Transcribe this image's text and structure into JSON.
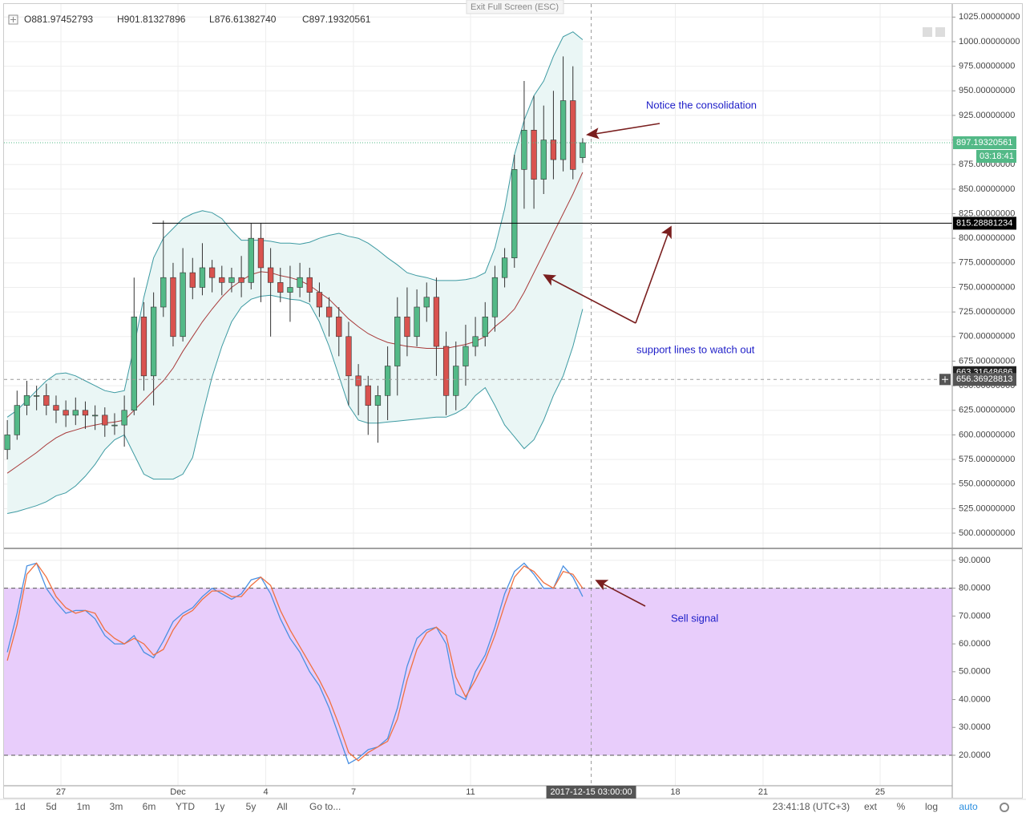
{
  "header": {
    "exit_button": "Exit Full Screen (ESC)",
    "ohlc": [
      {
        "key": "O",
        "value": "881.97452793"
      },
      {
        "key": "H",
        "value": "901.81327896"
      },
      {
        "key": "L",
        "value": "876.61382740"
      },
      {
        "key": "C",
        "value": "897.19320561"
      }
    ]
  },
  "chart_data": [
    {
      "type": "candlestick",
      "open": [
        585,
        600,
        630,
        640,
        640,
        630,
        625,
        620,
        625,
        620,
        620,
        610,
        610,
        625,
        720,
        660,
        730,
        760,
        700,
        765,
        750,
        770,
        760,
        755,
        760,
        755,
        800,
        770,
        755,
        745,
        750,
        760,
        745,
        730,
        720,
        700,
        660,
        650,
        630,
        640,
        670,
        720,
        700,
        730,
        740,
        690,
        640,
        670,
        690,
        700,
        720,
        760,
        780,
        870,
        910,
        860,
        900,
        880,
        940,
        881.97452793
      ],
      "high": [
        615,
        645,
        655,
        650,
        652,
        640,
        635,
        638,
        634,
        630,
        628,
        622,
        640,
        760,
        735,
        745,
        818,
        775,
        790,
        780,
        795,
        778,
        772,
        770,
        782,
        815,
        815,
        790,
        770,
        772,
        775,
        770,
        755,
        740,
        730,
        715,
        672,
        660,
        650,
        690,
        740,
        750,
        748,
        755,
        760,
        705,
        695,
        712,
        720,
        735,
        772,
        790,
        885,
        960,
        945,
        935,
        950,
        985,
        975,
        901.81327896
      ],
      "low": [
        575,
        595,
        620,
        625,
        620,
        612,
        608,
        610,
        606,
        605,
        598,
        600,
        588,
        620,
        645,
        630,
        720,
        690,
        695,
        738,
        742,
        745,
        742,
        745,
        740,
        748,
        735,
        700,
        735,
        715,
        740,
        735,
        720,
        700,
        680,
        630,
        620,
        600,
        592,
        615,
        640,
        680,
        690,
        715,
        660,
        620,
        625,
        650,
        680,
        690,
        705,
        750,
        770,
        830,
        830,
        845,
        860,
        868,
        860,
        876.6138274
      ],
      "close": [
        600,
        630,
        640,
        640,
        630,
        625,
        620,
        625,
        620,
        620,
        610,
        610,
        625,
        720,
        660,
        730,
        760,
        700,
        765,
        750,
        770,
        760,
        755,
        760,
        755,
        800,
        770,
        755,
        745,
        750,
        760,
        745,
        730,
        720,
        700,
        660,
        650,
        630,
        640,
        670,
        720,
        700,
        730,
        740,
        690,
        640,
        670,
        690,
        700,
        720,
        760,
        780,
        870,
        910,
        860,
        900,
        880,
        940,
        870,
        897.19320561
      ],
      "up_color": "#53b987",
      "down_color": "#d9534f",
      "bands": [
        {
          "color": "#3d9aa2",
          "values": [
            618,
            625,
            635,
            645,
            655,
            662,
            663,
            660,
            655,
            650,
            645,
            643,
            645,
            690,
            740,
            780,
            800,
            810,
            820,
            825,
            828,
            826,
            820,
            808,
            798,
            798,
            798,
            797,
            795,
            795,
            794,
            796,
            800,
            803,
            805,
            802,
            800,
            795,
            788,
            780,
            773,
            765,
            762,
            760,
            757,
            757,
            757,
            758,
            760,
            765,
            790,
            830,
            885,
            920,
            945,
            960,
            985,
            1005,
            1010,
            1002
          ]
        },
        {
          "color": "#a83a3a",
          "values": [
            561,
            568,
            575,
            582,
            590,
            597,
            602,
            605,
            608,
            610,
            612,
            613,
            615,
            625,
            635,
            645,
            655,
            668,
            685,
            700,
            715,
            728,
            740,
            750,
            757,
            763,
            766,
            765,
            762,
            760,
            757,
            752,
            745,
            738,
            728,
            718,
            710,
            703,
            698,
            694,
            692,
            690,
            689,
            688,
            688,
            688,
            690,
            692,
            695,
            700,
            710,
            718,
            728,
            745,
            765,
            785,
            805,
            825,
            845,
            867
          ]
        },
        {
          "color": "#3d9aa2",
          "values": [
            520,
            522,
            525,
            528,
            532,
            538,
            541,
            548,
            558,
            570,
            585,
            595,
            600,
            580,
            560,
            555,
            555,
            555,
            560,
            577,
            620,
            659,
            690,
            715,
            730,
            738,
            741,
            742,
            740,
            738,
            737,
            733,
            715,
            690,
            660,
            630,
            615,
            612,
            612,
            613,
            614,
            615,
            616,
            617,
            618,
            618,
            622,
            628,
            640,
            648,
            630,
            610,
            598,
            586,
            595,
            615,
            640,
            660,
            690,
            728
          ]
        }
      ],
      "band_fill": "#eaf6f5",
      "xlim": [
        -0.34,
        96.9
      ],
      "xticks": [
        {
          "value": 5.5,
          "label": "27"
        },
        {
          "value": 17.5,
          "label": "Dec"
        },
        {
          "value": 26.5,
          "label": "4"
        },
        {
          "value": 35.5,
          "label": "7"
        },
        {
          "value": 47.5,
          "label": "11"
        },
        {
          "value": 68.5,
          "label": "18"
        },
        {
          "value": 77.5,
          "label": "21"
        },
        {
          "value": 89.5,
          "label": "25"
        }
      ],
      "ylim": [
        484.5,
        1038.3
      ],
      "yticks": [
        {
          "value": 500,
          "label": "500.00000000"
        },
        {
          "value": 525,
          "label": "525.00000000"
        },
        {
          "value": 550,
          "label": "550.00000000"
        },
        {
          "value": 575,
          "label": "575.00000000"
        },
        {
          "value": 600,
          "label": "600.00000000"
        },
        {
          "value": 625,
          "label": "625.00000000"
        },
        {
          "value": 650,
          "label": "650.00000000"
        },
        {
          "value": 675,
          "label": "675.00000000"
        },
        {
          "value": 700,
          "label": "700.00000000"
        },
        {
          "value": 725,
          "label": "725.00000000"
        },
        {
          "value": 750,
          "label": "750.00000000"
        },
        {
          "value": 775,
          "label": "775.00000000"
        },
        {
          "value": 800,
          "label": "800.00000000"
        },
        {
          "value": 825,
          "label": "825.00000000"
        },
        {
          "value": 850,
          "label": "850.00000000"
        },
        {
          "value": 875,
          "label": "875.00000000"
        },
        {
          "value": 900,
          "label": "900.00000000"
        },
        {
          "value": 925,
          "label": "925.00000000"
        },
        {
          "value": 950,
          "label": "950.00000000"
        },
        {
          "value": 975,
          "label": "975.00000000"
        },
        {
          "value": 1000,
          "label": "1000.00000000"
        },
        {
          "value": 1025,
          "label": "1025.00000000"
        }
      ],
      "grid": true,
      "levels": [
        {
          "value": 815.28881234,
          "color": "#000000"
        }
      ],
      "last_price": 897.19320561,
      "countdown": "03:18:41",
      "hidden_label": 663.31648686,
      "crosshair": {
        "x": 59.875,
        "x_label": "2017-12-15 03:00:00",
        "y": 656.36928813
      },
      "annotations": [
        "Notice the consolidation",
        "support lines to watch out"
      ]
    },
    {
      "type": "line",
      "series": [
        {
          "color": "#4a90e2",
          "values": [
            57,
            71,
            88,
            89,
            80,
            75,
            71,
            72,
            72,
            69,
            63,
            60,
            60,
            63,
            57,
            55,
            61,
            68,
            71,
            73,
            77,
            80,
            78,
            76,
            78,
            83,
            84,
            78,
            69,
            62,
            57,
            50,
            45,
            37,
            27,
            17,
            19,
            22,
            23,
            26,
            37,
            52,
            62,
            65,
            66,
            60,
            42,
            40,
            50,
            56,
            66,
            78,
            86,
            89,
            85,
            80,
            80,
            88,
            84,
            77
          ]
        },
        {
          "color": "#f07040",
          "values": [
            54,
            67,
            85,
            89,
            84,
            77,
            73,
            71,
            72,
            71,
            65,
            62,
            60,
            62,
            60,
            56,
            58,
            65,
            70,
            72,
            76,
            79,
            79,
            77,
            77,
            81,
            84,
            81,
            72,
            65,
            59,
            53,
            47,
            40,
            31,
            21,
            18,
            21,
            23,
            25,
            33,
            47,
            58,
            64,
            66,
            63,
            48,
            41,
            47,
            54,
            63,
            74,
            84,
            88,
            86,
            82,
            80,
            86,
            85,
            80
          ]
        }
      ],
      "ylim": [
        9.05,
        94.3
      ],
      "yticks": [
        {
          "value": 20,
          "label": "20.0000"
        },
        {
          "value": 30,
          "label": "30.0000"
        },
        {
          "value": 40,
          "label": "40.0000"
        },
        {
          "value": 50,
          "label": "50.0000"
        },
        {
          "value": 60,
          "label": "60.0000"
        },
        {
          "value": 70,
          "label": "70.0000"
        },
        {
          "value": 80,
          "label": "80.0000"
        },
        {
          "value": 90,
          "label": "90.0000"
        }
      ],
      "band": [
        20,
        80
      ],
      "band_color": "#e8cdfb",
      "annotations": [
        "Sell signal"
      ]
    }
  ],
  "toolbar": {
    "ranges": [
      "1d",
      "5d",
      "1m",
      "3m",
      "6m",
      "YTD",
      "1y",
      "5y",
      "All"
    ],
    "goto": "Go to...",
    "clock": "23:41:18 (UTC+3)",
    "options": [
      "ext",
      "%",
      "log",
      "auto"
    ]
  }
}
